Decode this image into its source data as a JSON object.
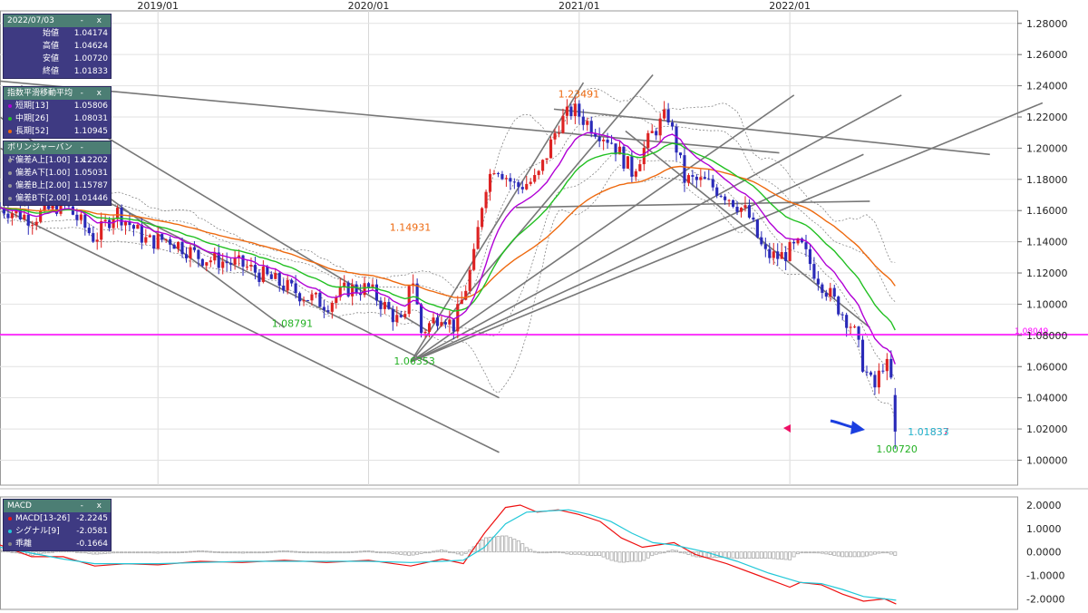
{
  "colors": {
    "up": "#dd2222",
    "down": "#2a2ab8",
    "short_ma": "#b100d6",
    "mid_ma": "#22c022",
    "long_ma": "#ee6a10",
    "bollinger": "#777777",
    "trendline": "#777777",
    "hline": "#ff00ff",
    "macd": "#ee1111",
    "signal": "#22c8d8",
    "hist": "#aaaaaa",
    "panel_bg": "#3e3a82",
    "panel_head": "#4c7e74"
  },
  "ohlc_panel": {
    "date": "2022/07/03",
    "controls": "- x",
    "rows": [
      {
        "label": "始値",
        "value": "1.04174"
      },
      {
        "label": "高値",
        "value": "1.04624"
      },
      {
        "label": "安値",
        "value": "1.00720"
      },
      {
        "label": "終値",
        "value": "1.01833"
      }
    ]
  },
  "ema_panel": {
    "title": "指数平滑移動平均",
    "controls": "- x",
    "rows": [
      {
        "label": "短期[13]",
        "value": "1.05806",
        "color": "#b100d6"
      },
      {
        "label": "中期[26]",
        "value": "1.08031",
        "color": "#22c022"
      },
      {
        "label": "長期[52]",
        "value": "1.10945",
        "color": "#ee6a10"
      }
    ]
  },
  "bb_panel": {
    "title": "ボリンジャーバンド",
    "controls": "- x",
    "rows": [
      {
        "label": "偏差A上[1.00]",
        "value": "1.12202",
        "color": "#999999"
      },
      {
        "label": "偏差A下[1.00]",
        "value": "1.05031",
        "color": "#999999"
      },
      {
        "label": "偏差B上[2.00]",
        "value": "1.15787",
        "color": "#999999"
      },
      {
        "label": "偏差B下[2.00]",
        "value": "1.01446",
        "color": "#999999"
      }
    ]
  },
  "macd_panel": {
    "title": "MACD",
    "controls": "- x",
    "rows": [
      {
        "label": "MACD[13-26]",
        "value": "-2.2245",
        "color": "#ee1111"
      },
      {
        "label": "シグナル[9]",
        "value": "-2.0581",
        "color": "#22c8d8"
      },
      {
        "label": "乖離",
        "value": "-0.1664",
        "color": "#888888"
      }
    ]
  },
  "chart_data": [
    {
      "type": "candlestick",
      "instrument_view": "weekly price chart",
      "x_range": [
        2018.25,
        2023.08
      ],
      "ylim": [
        0.984,
        1.288
      ],
      "grid": true,
      "x_ticks": [
        {
          "label": "2019/01",
          "x": 2019.0
        },
        {
          "label": "2020/01",
          "x": 2020.0
        },
        {
          "label": "2021/01",
          "x": 2021.0
        },
        {
          "label": "2022/01",
          "x": 2022.0
        }
      ],
      "y_ticks": [
        "1.00000",
        "1.02000",
        "1.04000",
        "1.06000",
        "1.08000",
        "1.10000",
        "1.12000",
        "1.14000",
        "1.16000",
        "1.18000",
        "1.20000",
        "1.22000",
        "1.24000",
        "1.26000",
        "1.28000"
      ],
      "price_anchors": [
        [
          2018.25,
          1.162
        ],
        [
          2018.4,
          1.155
        ],
        [
          2018.55,
          1.165
        ],
        [
          2018.7,
          1.142
        ],
        [
          2018.8,
          1.16
        ],
        [
          2018.95,
          1.14
        ],
        [
          2019.05,
          1.142
        ],
        [
          2019.2,
          1.13
        ],
        [
          2019.4,
          1.125
        ],
        [
          2019.55,
          1.115
        ],
        [
          2019.7,
          1.105
        ],
        [
          2019.8,
          1.1
        ],
        [
          2019.9,
          1.11
        ],
        [
          2020.0,
          1.11
        ],
        [
          2020.1,
          1.095
        ],
        [
          2020.17,
          1.085
        ],
        [
          2020.2,
          1.125
        ],
        [
          2020.25,
          1.082
        ],
        [
          2020.35,
          1.095
        ],
        [
          2020.4,
          1.085
        ],
        [
          2020.45,
          1.105
        ],
        [
          2020.5,
          1.13
        ],
        [
          2020.55,
          1.175
        ],
        [
          2020.6,
          1.19
        ],
        [
          2020.7,
          1.175
        ],
        [
          2020.8,
          1.18
        ],
        [
          2020.9,
          1.215
        ],
        [
          2020.97,
          1.225
        ],
        [
          2021.05,
          1.215
        ],
        [
          2021.15,
          1.205
        ],
        [
          2021.25,
          1.185
        ],
        [
          2021.35,
          1.21
        ],
        [
          2021.42,
          1.222
        ],
        [
          2021.5,
          1.18
        ],
        [
          2021.6,
          1.178
        ],
        [
          2021.7,
          1.17
        ],
        [
          2021.8,
          1.158
        ],
        [
          2021.88,
          1.132
        ],
        [
          2021.95,
          1.13
        ],
        [
          2022.05,
          1.138
        ],
        [
          2022.12,
          1.12
        ],
        [
          2022.22,
          1.1
        ],
        [
          2022.3,
          1.085
        ],
        [
          2022.35,
          1.06
        ],
        [
          2022.4,
          1.045
        ],
        [
          2022.45,
          1.065
        ],
        [
          2022.5,
          1.042
        ],
        [
          2022.505,
          1.0183
        ]
      ],
      "labels": [
        {
          "text": "1.23491",
          "x": 2020.9,
          "y": 1.2349,
          "color": "#ee6a10"
        },
        {
          "text": "1.14931",
          "x": 2020.1,
          "y": 1.1493,
          "color": "#ee6a10"
        },
        {
          "text": "1.08791",
          "x": 2019.54,
          "y": 1.0879,
          "color": "#22b022"
        },
        {
          "text": "1.06353",
          "x": 2020.12,
          "y": 1.0635,
          "color": "#22b022"
        },
        {
          "text": "1.00720",
          "x": 2022.41,
          "y": 1.0072,
          "color": "#22b022"
        },
        {
          "text": "1.01837",
          "x": 2022.56,
          "y": 1.0184,
          "color": "#ee1166"
        },
        {
          "text": "1.01833",
          "x": 2022.56,
          "y": 1.0183,
          "color": "#22c8d8"
        },
        {
          "text": "1.08049",
          "x": 2023.05,
          "y": 1.0805,
          "color": "#ff00ff"
        }
      ],
      "horizontal_line": 1.08049,
      "trendlines": [
        [
          [
            2018.25,
            1.243
          ],
          [
            2021.95,
            1.197
          ]
        ],
        [
          [
            2018.25,
            1.2
          ],
          [
            2020.62,
            1.04
          ]
        ],
        [
          [
            2018.35,
            1.24
          ],
          [
            2020.28,
            1.083
          ]
        ],
        [
          [
            2018.25,
            1.22
          ],
          [
            2019.6,
            1.085
          ]
        ],
        [
          [
            2018.25,
            1.162
          ],
          [
            2020.62,
            1.005
          ]
        ],
        [
          [
            2020.2,
            1.063
          ],
          [
            2021.35,
            1.247
          ]
        ],
        [
          [
            2020.2,
            1.063
          ],
          [
            2021.02,
            1.242
          ]
        ],
        [
          [
            2020.2,
            1.063
          ],
          [
            2022.02,
            1.234
          ]
        ],
        [
          [
            2020.2,
            1.063
          ],
          [
            2022.53,
            1.234
          ]
        ],
        [
          [
            2020.2,
            1.063
          ],
          [
            2023.2,
            1.229
          ]
        ],
        [
          [
            2020.2,
            1.063
          ],
          [
            2022.35,
            1.196
          ]
        ],
        [
          [
            2020.7,
            1.162
          ],
          [
            2022.38,
            1.166
          ]
        ],
        [
          [
            2020.88,
            1.225
          ],
          [
            2022.95,
            1.196
          ]
        ],
        [
          [
            2021.22,
            1.211
          ],
          [
            2022.38,
            1.085
          ]
        ]
      ]
    },
    {
      "type": "line",
      "title": "MACD",
      "ylim": [
        -2.45,
        2.35
      ],
      "y_ticks": [
        "2.0000",
        "1.0000",
        "0.0000",
        "-1.0000",
        "-2.0000"
      ],
      "series": [
        {
          "name": "MACD[13-26]",
          "color": "#ee1111",
          "points": [
            [
              2018.25,
              0.3
            ],
            [
              2018.4,
              -0.2
            ],
            [
              2018.55,
              -0.2
            ],
            [
              2018.7,
              -0.6
            ],
            [
              2018.85,
              -0.5
            ],
            [
              2019.0,
              -0.55
            ],
            [
              2019.2,
              -0.4
            ],
            [
              2019.4,
              -0.45
            ],
            [
              2019.6,
              -0.35
            ],
            [
              2019.8,
              -0.45
            ],
            [
              2020.0,
              -0.35
            ],
            [
              2020.2,
              -0.6
            ],
            [
              2020.35,
              -0.3
            ],
            [
              2020.45,
              -0.5
            ],
            [
              2020.55,
              0.8
            ],
            [
              2020.65,
              1.9
            ],
            [
              2020.72,
              2.0
            ],
            [
              2020.8,
              1.7
            ],
            [
              2020.9,
              1.8
            ],
            [
              2021.0,
              1.6
            ],
            [
              2021.1,
              1.3
            ],
            [
              2021.2,
              0.6
            ],
            [
              2021.3,
              0.2
            ],
            [
              2021.45,
              0.4
            ],
            [
              2021.55,
              -0.1
            ],
            [
              2021.7,
              -0.5
            ],
            [
              2021.85,
              -1.0
            ],
            [
              2022.0,
              -1.5
            ],
            [
              2022.05,
              -1.3
            ],
            [
              2022.15,
              -1.4
            ],
            [
              2022.25,
              -1.8
            ],
            [
              2022.35,
              -2.1
            ],
            [
              2022.45,
              -2.0
            ],
            [
              2022.505,
              -2.22
            ]
          ]
        },
        {
          "name": "シグナル[9]",
          "color": "#22c8d8",
          "points": [
            [
              2018.25,
              0.2
            ],
            [
              2018.4,
              -0.05
            ],
            [
              2018.55,
              -0.3
            ],
            [
              2018.7,
              -0.5
            ],
            [
              2018.85,
              -0.5
            ],
            [
              2019.0,
              -0.5
            ],
            [
              2019.2,
              -0.45
            ],
            [
              2019.4,
              -0.4
            ],
            [
              2019.6,
              -0.4
            ],
            [
              2019.8,
              -0.4
            ],
            [
              2020.0,
              -0.4
            ],
            [
              2020.2,
              -0.45
            ],
            [
              2020.35,
              -0.4
            ],
            [
              2020.45,
              -0.35
            ],
            [
              2020.55,
              0.2
            ],
            [
              2020.65,
              1.2
            ],
            [
              2020.75,
              1.7
            ],
            [
              2020.85,
              1.75
            ],
            [
              2020.95,
              1.8
            ],
            [
              2021.05,
              1.6
            ],
            [
              2021.15,
              1.3
            ],
            [
              2021.25,
              0.8
            ],
            [
              2021.35,
              0.4
            ],
            [
              2021.45,
              0.3
            ],
            [
              2021.6,
              0.0
            ],
            [
              2021.75,
              -0.4
            ],
            [
              2021.9,
              -0.9
            ],
            [
              2022.05,
              -1.3
            ],
            [
              2022.15,
              -1.35
            ],
            [
              2022.25,
              -1.6
            ],
            [
              2022.35,
              -1.9
            ],
            [
              2022.45,
              -2.0
            ],
            [
              2022.505,
              -2.06
            ]
          ]
        }
      ]
    }
  ]
}
